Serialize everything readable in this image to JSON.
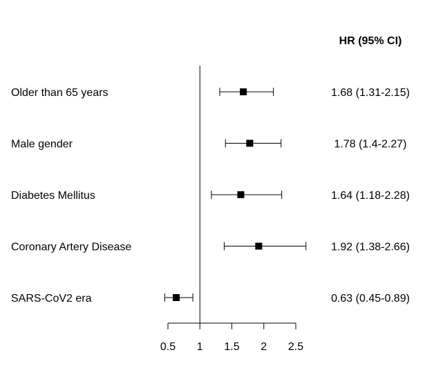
{
  "chart_data": {
    "type": "forest",
    "header": "HR (95% CI)",
    "reference_line": 1,
    "xlim": [
      0.5,
      2.5
    ],
    "x_ticks": [
      "0.5",
      "1",
      "1.5",
      "2",
      "2.5"
    ],
    "x_tick_values": [
      0.5,
      1,
      1.5,
      2,
      2.5
    ],
    "rows": [
      {
        "label": "Older than 65 years",
        "hr": 1.68,
        "lower": 1.31,
        "upper": 2.15,
        "ci_text": "1.68 (1.31-2.15)"
      },
      {
        "label": "Male gender",
        "hr": 1.78,
        "lower": 1.4,
        "upper": 2.27,
        "ci_text": "1.78 (1.4-2.27)"
      },
      {
        "label": "Diabetes Mellitus",
        "hr": 1.64,
        "lower": 1.18,
        "upper": 2.28,
        "ci_text": "1.64 (1.18-2.28)"
      },
      {
        "label": "Coronary Artery Disease",
        "hr": 1.92,
        "lower": 1.38,
        "upper": 2.66,
        "ci_text": "1.92 (1.38-2.66)"
      },
      {
        "label": "SARS-CoV2 era",
        "hr": 0.63,
        "lower": 0.45,
        "upper": 0.89,
        "ci_text": "0.63 (0.45-0.89)"
      }
    ]
  }
}
